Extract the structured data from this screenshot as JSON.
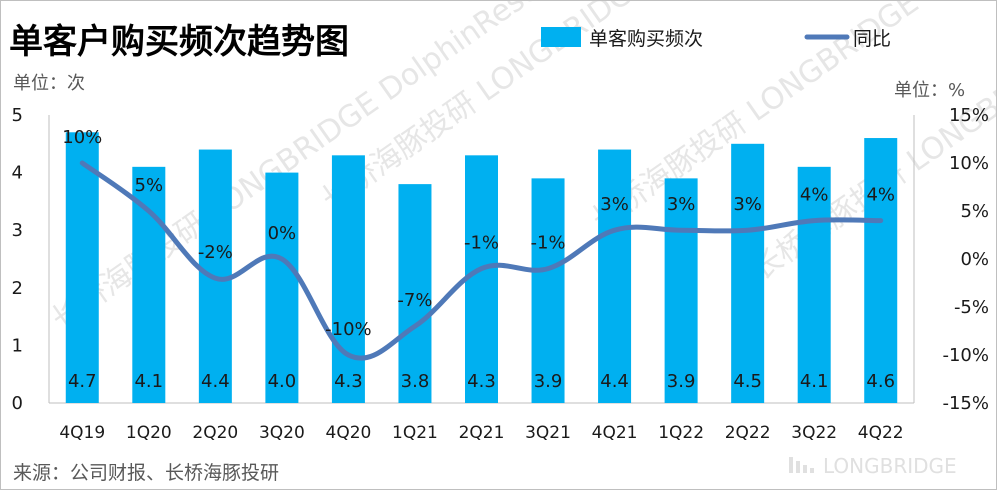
{
  "chart_data": {
    "type": "bar",
    "title": "单客户购买频次趋势图",
    "categories": [
      "4Q19",
      "1Q20",
      "2Q20",
      "3Q20",
      "4Q20",
      "1Q21",
      "2Q21",
      "3Q21",
      "4Q21",
      "1Q22",
      "2Q22",
      "3Q22",
      "4Q22"
    ],
    "series": [
      {
        "name": "单客购买频次",
        "type": "bar",
        "axis": "left",
        "color": "#00b0f0",
        "values": [
          4.7,
          4.1,
          4.4,
          4.0,
          4.3,
          3.8,
          4.3,
          3.9,
          4.4,
          3.9,
          4.5,
          4.1,
          4.6
        ],
        "labels": [
          "4.7",
          "4.1",
          "4.4",
          "4.0",
          "4.3",
          "3.8",
          "4.3",
          "3.9",
          "4.4",
          "3.9",
          "4.5",
          "4.1",
          "4.6"
        ]
      },
      {
        "name": "同比",
        "type": "line",
        "axis": "right",
        "color": "#4f79b8",
        "values": [
          10,
          5,
          -2,
          0,
          -10,
          -7,
          -1,
          -1,
          3,
          3,
          3,
          4,
          4
        ],
        "labels": [
          "10%",
          "5%",
          "-2%",
          "0%",
          "-10%",
          "-7%",
          "-1%",
          "-1%",
          "3%",
          "3%",
          "3%",
          "4%",
          "4%"
        ]
      }
    ],
    "y_left": {
      "unit_label": "单位：次",
      "ylim": [
        0,
        5
      ],
      "ticks": [
        0,
        1,
        2,
        3,
        4,
        5
      ],
      "tick_labels": [
        "0",
        "1",
        "2",
        "3",
        "4",
        "5"
      ]
    },
    "y_right": {
      "unit_label": "单位：%",
      "ylim": [
        -15,
        15
      ],
      "ticks": [
        -15,
        -10,
        -5,
        0,
        5,
        10,
        15
      ],
      "tick_labels": [
        "-15%",
        "-10%",
        "-5%",
        "0%",
        "5%",
        "10%",
        "15%"
      ]
    },
    "legend": {
      "position": "top-right"
    },
    "grid": false
  },
  "source": "来源：公司财报、长桥海豚投研",
  "watermark": {
    "brand": "LONGBRIDGE",
    "text": "长桥海豚投研 LONGBRIDGE DolphinResearch"
  }
}
